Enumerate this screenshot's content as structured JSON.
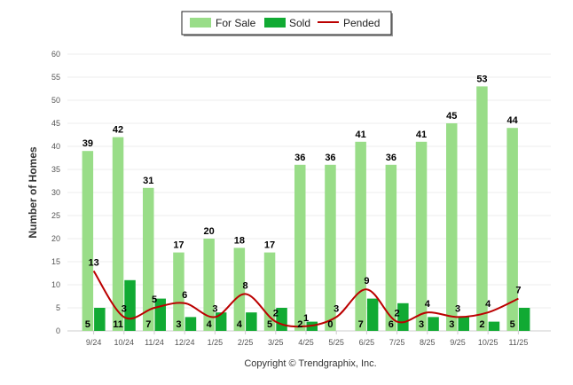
{
  "chart_data": {
    "type": "bar",
    "categories": [
      "9/24",
      "10/24",
      "11/24",
      "12/24",
      "1/25",
      "2/25",
      "3/25",
      "4/25",
      "5/25",
      "6/25",
      "7/25",
      "8/25",
      "9/25",
      "10/25",
      "11/25"
    ],
    "series": [
      {
        "name": "For Sale",
        "type": "bar",
        "color": "#99dd88",
        "values": [
          39,
          42,
          31,
          17,
          20,
          18,
          17,
          36,
          36,
          41,
          36,
          41,
          45,
          53,
          44
        ]
      },
      {
        "name": "Sold",
        "type": "bar",
        "color": "#11aa33",
        "values": [
          5,
          11,
          7,
          3,
          4,
          4,
          5,
          2,
          0,
          7,
          6,
          3,
          3,
          2,
          5
        ]
      },
      {
        "name": "Pended",
        "type": "line",
        "color": "#bb0000",
        "values": [
          13,
          3,
          5,
          6,
          3,
          8,
          2,
          1,
          3,
          9,
          2,
          4,
          3,
          4,
          7
        ]
      }
    ],
    "ylabel": "Number of Homes",
    "xlabel": "",
    "ylim": [
      0,
      60
    ],
    "yticks": [
      0,
      5,
      10,
      15,
      20,
      25,
      30,
      35,
      40,
      45,
      50,
      55,
      60
    ],
    "grid": true,
    "legend_position": "top-center"
  },
  "footer": {
    "copyright": "Copyright © Trendgraphix, Inc."
  }
}
